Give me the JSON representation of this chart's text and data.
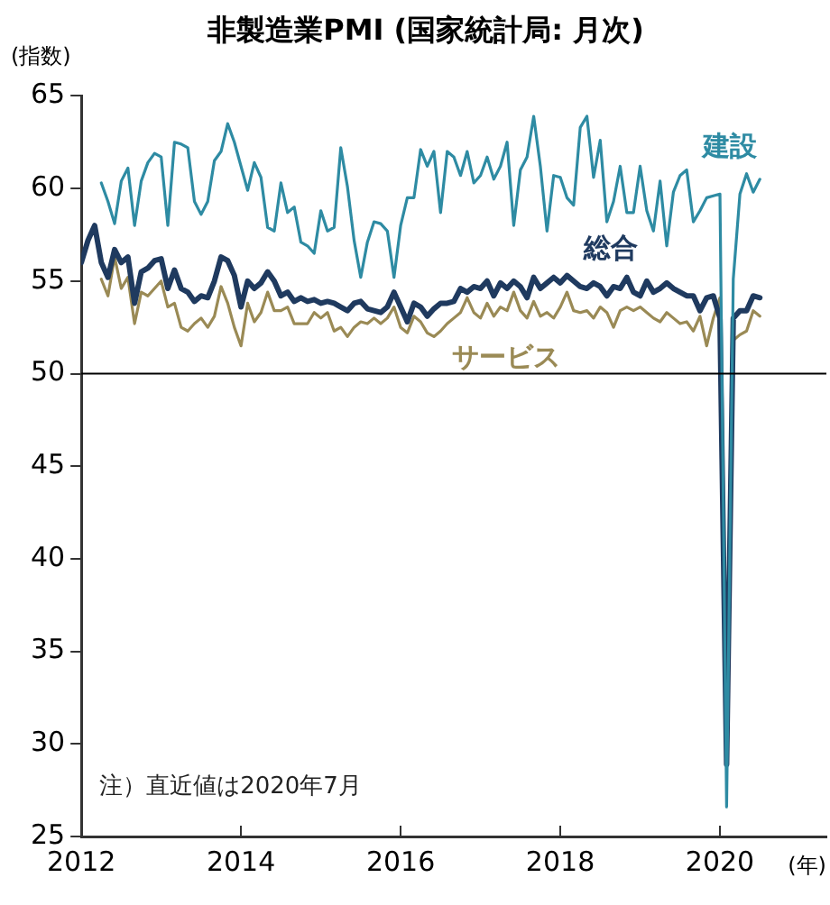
{
  "chart_data": {
    "type": "line",
    "title": "非製造業PMI (国家統計局: 月次)",
    "ylabel": "(指数)",
    "xlabel": "(年)",
    "x": [
      "2012-01",
      "2012-02",
      "2012-03",
      "2012-04",
      "2012-05",
      "2012-06",
      "2012-07",
      "2012-08",
      "2012-09",
      "2012-10",
      "2012-11",
      "2012-12",
      "2013-01",
      "2013-02",
      "2013-03",
      "2013-04",
      "2013-05",
      "2013-06",
      "2013-07",
      "2013-08",
      "2013-09",
      "2013-10",
      "2013-11",
      "2013-12",
      "2014-01",
      "2014-02",
      "2014-03",
      "2014-04",
      "2014-05",
      "2014-06",
      "2014-07",
      "2014-08",
      "2014-09",
      "2014-10",
      "2014-11",
      "2014-12",
      "2015-01",
      "2015-02",
      "2015-03",
      "2015-04",
      "2015-05",
      "2015-06",
      "2015-07",
      "2015-08",
      "2015-09",
      "2015-10",
      "2015-11",
      "2015-12",
      "2016-01",
      "2016-02",
      "2016-03",
      "2016-04",
      "2016-05",
      "2016-06",
      "2016-07",
      "2016-08",
      "2016-09",
      "2016-10",
      "2016-11",
      "2016-12",
      "2017-01",
      "2017-02",
      "2017-03",
      "2017-04",
      "2017-05",
      "2017-06",
      "2017-07",
      "2017-08",
      "2017-09",
      "2017-10",
      "2017-11",
      "2017-12",
      "2018-01",
      "2018-02",
      "2018-03",
      "2018-04",
      "2018-05",
      "2018-06",
      "2018-07",
      "2018-08",
      "2018-09",
      "2018-10",
      "2018-11",
      "2018-12",
      "2019-01",
      "2019-02",
      "2019-03",
      "2019-04",
      "2019-05",
      "2019-06",
      "2019-07",
      "2019-08",
      "2019-09",
      "2019-10",
      "2019-11",
      "2019-12",
      "2020-01",
      "2020-02",
      "2020-03",
      "2020-04",
      "2020-05",
      "2020-06",
      "2020-07"
    ],
    "series": [
      {
        "name": "建設",
        "color": "#2e8ba3",
        "values": [
          null,
          null,
          null,
          60.3,
          59.3,
          58.1,
          60.4,
          61.1,
          58.0,
          60.4,
          61.4,
          61.9,
          61.7,
          58.0,
          62.5,
          62.4,
          62.2,
          59.3,
          58.6,
          59.3,
          61.5,
          62.0,
          63.5,
          62.5,
          61.2,
          59.9,
          61.4,
          60.6,
          57.9,
          57.7,
          60.3,
          58.7,
          59.0,
          57.1,
          56.9,
          56.5,
          58.8,
          57.7,
          57.9,
          62.2,
          60.1,
          57.2,
          55.2,
          57.1,
          58.2,
          58.1,
          57.7,
          55.2,
          58.0,
          59.5,
          59.5,
          62.1,
          61.2,
          62.0,
          58.7,
          62.0,
          61.7,
          60.7,
          62.0,
          60.3,
          60.7,
          61.7,
          60.5,
          61.2,
          62.5,
          58.0,
          61.0,
          61.7,
          63.9,
          61.2,
          57.7,
          60.7,
          60.6,
          59.5,
          59.1,
          63.3,
          63.9,
          60.6,
          62.6,
          58.2,
          59.3,
          61.2,
          58.7,
          58.7,
          61.2,
          58.8,
          57.7,
          60.4,
          56.9,
          59.8,
          60.7,
          61.0,
          58.2,
          58.8,
          59.5,
          59.6,
          59.7,
          26.6,
          55.1,
          59.7,
          60.8,
          59.8,
          60.5
        ]
      },
      {
        "name": "総合",
        "color": "#1f3a5f",
        "values": [
          56.0,
          57.2,
          58.0,
          56.0,
          55.2,
          56.7,
          56.0,
          56.3,
          53.8,
          55.5,
          55.7,
          56.1,
          56.2,
          54.6,
          55.6,
          54.6,
          54.4,
          53.9,
          54.2,
          54.1,
          55.0,
          56.3,
          56.1,
          55.3,
          53.6,
          55.0,
          54.6,
          54.9,
          55.5,
          55.0,
          54.2,
          54.4,
          53.9,
          54.1,
          53.9,
          54.0,
          53.8,
          53.9,
          53.8,
          53.6,
          53.4,
          53.8,
          53.9,
          53.5,
          53.4,
          53.3,
          53.6,
          54.4,
          53.6,
          52.8,
          53.8,
          53.6,
          53.1,
          53.5,
          53.8,
          53.8,
          53.9,
          54.6,
          54.4,
          54.7,
          54.6,
          55.0,
          54.2,
          54.9,
          54.6,
          55.0,
          54.7,
          54.1,
          55.2,
          54.6,
          54.9,
          55.2,
          54.9,
          55.3,
          55.0,
          54.7,
          54.6,
          54.9,
          54.7,
          54.2,
          54.7,
          54.6,
          55.2,
          54.4,
          54.2,
          55.0,
          54.4,
          54.6,
          54.9,
          54.6,
          54.4,
          54.2,
          54.2,
          53.4,
          54.1,
          54.2,
          53.0,
          28.9,
          53.0,
          53.4,
          53.4,
          54.2,
          54.1
        ]
      },
      {
        "name": "サービス",
        "color": "#9a8a55",
        "values": [
          null,
          null,
          null,
          55.1,
          54.2,
          56.3,
          54.6,
          55.2,
          52.7,
          54.4,
          54.2,
          54.6,
          55.0,
          53.6,
          53.8,
          52.5,
          52.3,
          52.7,
          53.0,
          52.5,
          53.1,
          54.7,
          53.8,
          52.5,
          51.5,
          53.8,
          52.8,
          53.3,
          54.4,
          53.4,
          53.4,
          53.6,
          52.7,
          52.7,
          52.7,
          53.3,
          53.0,
          53.3,
          52.3,
          52.5,
          52.0,
          52.5,
          52.8,
          52.7,
          53.0,
          52.7,
          53.0,
          53.6,
          52.5,
          52.2,
          53.1,
          52.8,
          52.2,
          52.0,
          52.3,
          52.7,
          53.0,
          53.3,
          54.1,
          53.3,
          53.0,
          53.8,
          53.1,
          53.6,
          53.4,
          54.4,
          53.4,
          53.0,
          53.9,
          53.1,
          53.3,
          53.0,
          53.6,
          54.4,
          53.4,
          53.3,
          53.4,
          53.0,
          53.6,
          53.3,
          52.5,
          53.4,
          53.6,
          53.4,
          53.6,
          53.3,
          53.0,
          52.8,
          53.3,
          53.0,
          52.7,
          52.8,
          52.3,
          53.1,
          51.5,
          53.0,
          54.1,
          29.6,
          51.8,
          52.1,
          52.3,
          53.4,
          53.1
        ]
      }
    ],
    "xlim": [
      "2012-01",
      "2021-05"
    ],
    "xticks": [
      "2012",
      "2014",
      "2016",
      "2018",
      "2020"
    ],
    "ylim": [
      25,
      65
    ],
    "yticks": [
      25,
      30,
      35,
      40,
      45,
      50,
      55,
      60,
      65
    ],
    "ref_lines": [
      {
        "axis": "y",
        "value": 50,
        "color": "#000000"
      }
    ],
    "annotations": [
      "注）直近値は2020年7月"
    ],
    "grid": false,
    "legend": false
  }
}
